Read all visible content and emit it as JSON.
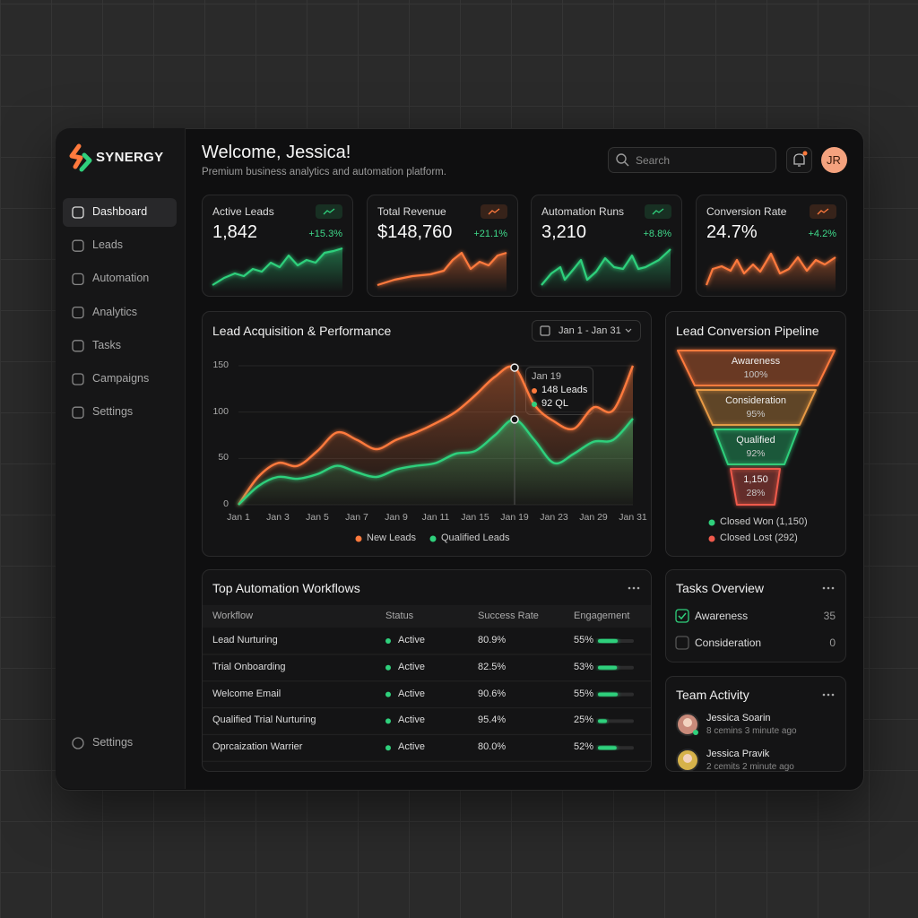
{
  "sidebar": {
    "brand": "SYNERGY",
    "nav": [
      "Dashboard",
      "Leads",
      "Automation",
      "Analytics",
      "Tasks",
      "Campaigns",
      "Settings"
    ],
    "footer": "Settings"
  },
  "header": {
    "title": "Welcome, Jessica!",
    "subtitle": "Premium business analytics and automation platform.",
    "search": "Search",
    "avatar": "JR"
  },
  "kpis": [
    {
      "label": "Active Leads",
      "value": "1,842",
      "change": "+15.3%",
      "color": "#2fd07c"
    },
    {
      "label": "Total Revenue",
      "value": "$148,760",
      "change": "+21.1%",
      "color": "#ff7a3d"
    },
    {
      "label": "Automation Runs",
      "value": "3,210",
      "change": "+8.8%",
      "color": "#2fd07c"
    },
    {
      "label": "Conversion Rate",
      "value": "24.7%",
      "change": "+4.2%",
      "color": "#ff7a3d"
    }
  ],
  "chart_data": {
    "type": "area",
    "title": "Lead Acquisition & Performance",
    "date_range": "Jan 1 - Jan 31",
    "categories": [
      "Jan 1",
      null,
      "Jan 3",
      null,
      "Jan 5",
      null,
      "Jan 7",
      null,
      "Jan 9",
      null,
      "Jan 11",
      null,
      "Jan 15",
      null,
      "Jan 19",
      null,
      "Jan 23",
      null,
      "Jan 29",
      null,
      "Jan 31"
    ],
    "series": [
      {
        "name": "New Leads",
        "color": "#ff7a3d",
        "values": [
          0,
          30,
          45,
          42,
          58,
          78,
          70,
          60,
          70,
          78,
          88,
          100,
          118,
          138,
          148,
          108,
          90,
          82,
          105,
          102,
          150
        ]
      },
      {
        "name": "Qualified Leads",
        "color": "#2fd07c",
        "values": [
          0,
          20,
          30,
          28,
          33,
          42,
          35,
          30,
          38,
          42,
          45,
          55,
          58,
          75,
          92,
          70,
          45,
          55,
          68,
          70,
          93
        ]
      }
    ],
    "ylim": [
      0,
      150
    ],
    "yticks": [
      0,
      50,
      100,
      150
    ],
    "grid": true,
    "tooltip": {
      "date": "Jan 19",
      "lines": [
        "148 Leads",
        "92 QL"
      ]
    }
  },
  "pipeline": {
    "title": "Lead Conversion Pipeline",
    "stages": [
      {
        "label": "Awareness",
        "value": "100%",
        "color": "#ff7a3d"
      },
      {
        "label": "Consideration",
        "value": "95%",
        "color": "#e89a45"
      },
      {
        "label": "Qualified",
        "value": "92%",
        "color": "#2fd07c"
      },
      {
        "label": "1,150",
        "value": "28%",
        "color": "#ef5a4c"
      }
    ],
    "legend": [
      {
        "label": "Closed Won (1,150)",
        "color": "#2fd07c"
      },
      {
        "label": "Closed Lost (292)",
        "color": "#ef5a4c"
      }
    ]
  },
  "workflows": {
    "title": "Top Automation Workflows",
    "columns": [
      "Workflow",
      "Status",
      "Success Rate",
      "Engagement"
    ],
    "rows": [
      [
        "Lead Nurturing",
        "Active",
        "80.9%",
        "55%"
      ],
      [
        "Trial Onboarding",
        "Active",
        "82.5%",
        "53%"
      ],
      [
        "Welcome Email",
        "Active",
        "90.6%",
        "55%"
      ],
      [
        "Qualified Trial Nurturing",
        "Active",
        "95.4%",
        "25%"
      ],
      [
        "Oprcaization Warrier",
        "Active",
        "80.0%",
        "52%"
      ]
    ],
    "engagement": [
      55,
      53,
      55,
      25,
      52
    ]
  },
  "tasks": {
    "title": "Tasks Overview",
    "items": [
      {
        "label": "Awareness",
        "count": 35,
        "done": true
      },
      {
        "label": "Consideration",
        "count": 0,
        "done": false
      }
    ]
  },
  "team": {
    "title": "Team Activity",
    "members": [
      {
        "name": "Jessica Soarin",
        "status": "8 cemins 3 minute ago"
      },
      {
        "name": "Jessica Pravik",
        "status": "2 cemits 2 minute ago"
      }
    ]
  }
}
